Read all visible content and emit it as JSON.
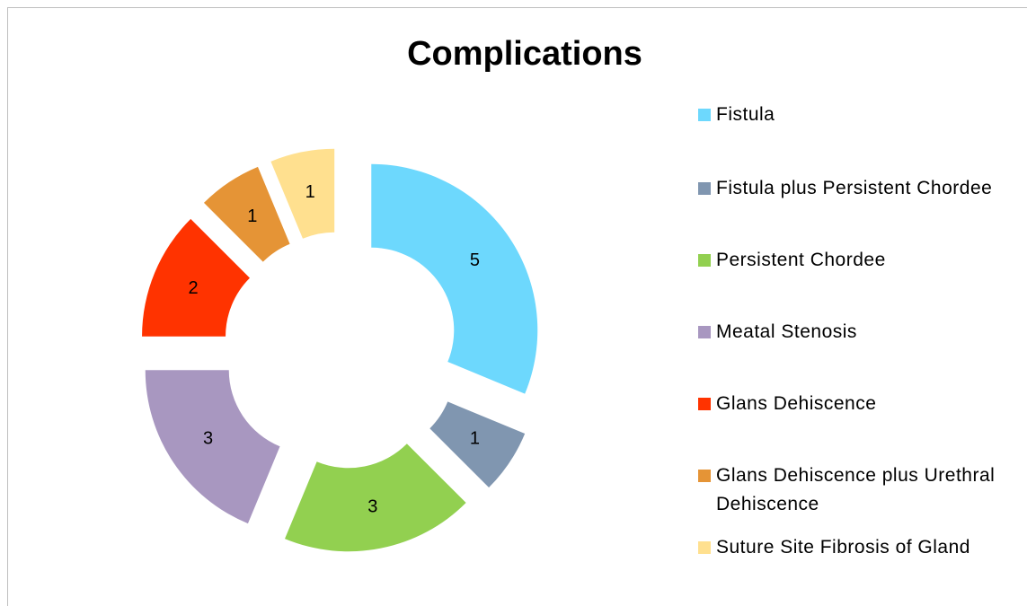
{
  "chart_data": {
    "type": "doughnut",
    "title": "Complications",
    "categories": [
      "Fistula",
      "Fistula plus Persistent Chordee",
      "Persistent Chordee",
      "Meatal Stenosis",
      "Glans Dehiscence",
      "Glans Dehiscence plus Urethral Dehiscence",
      "Suture Site Fibrosis of Gland"
    ],
    "values": [
      5,
      1,
      3,
      3,
      2,
      1,
      1
    ],
    "colors": [
      "#6dd8fd",
      "#8096b0",
      "#92d050",
      "#a897c0",
      "#ff3300",
      "#e59436",
      "#ffe08f"
    ],
    "legend": "right"
  }
}
